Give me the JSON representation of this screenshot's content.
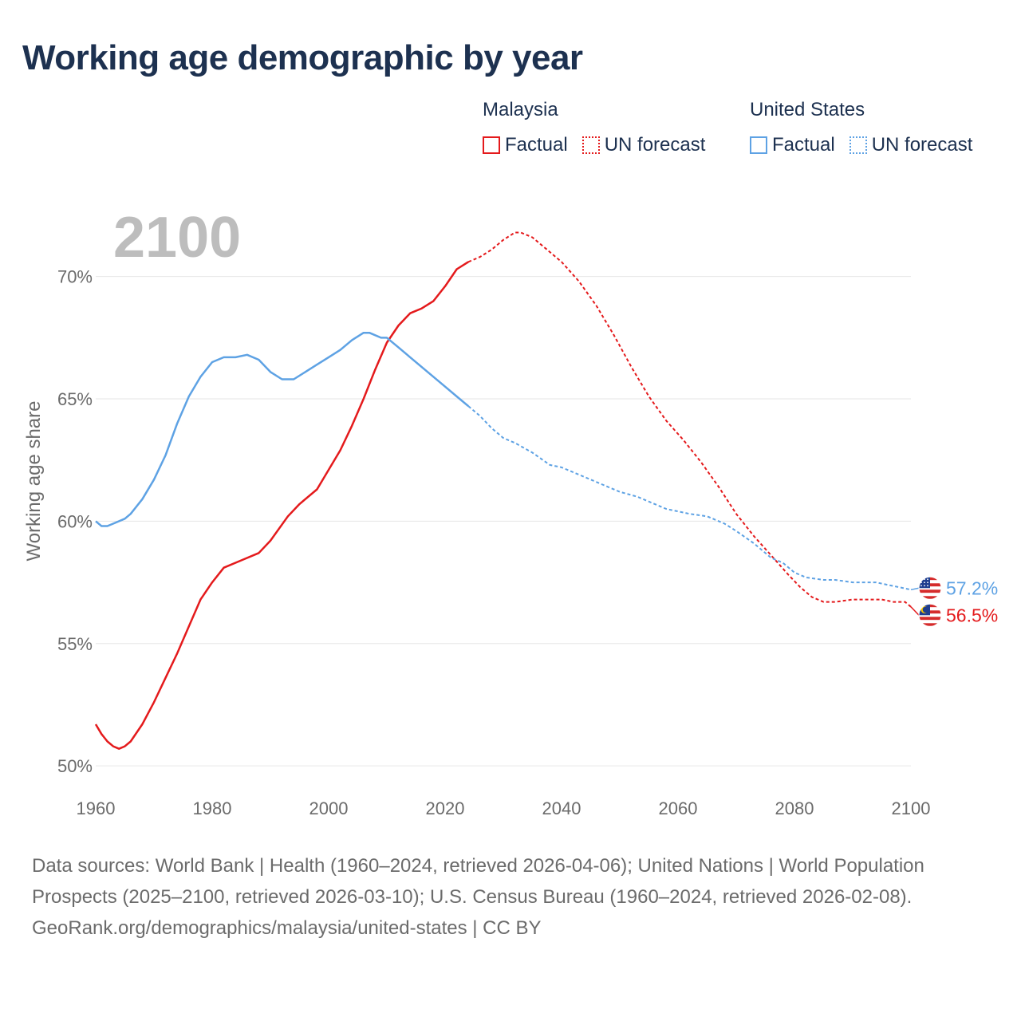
{
  "title": "Working age demographic by year",
  "legend": {
    "malaysia": {
      "title": "Malaysia",
      "factual": "Factual",
      "forecast": "UN forecast"
    },
    "us": {
      "title": "United States",
      "factual": "Factual",
      "forecast": "UN forecast"
    }
  },
  "colors": {
    "malaysia": "#e41a1c",
    "us": "#5ea2e4",
    "grid": "#e6e6e6",
    "axis_text": "#6b6b6b",
    "year_label": "#bdbdbd"
  },
  "chart_data": {
    "type": "line",
    "year_label": "2100",
    "ylabel": "Working age share",
    "xlim": [
      1960,
      2100
    ],
    "ylim": [
      48.7,
      72.5
    ],
    "xticks": [
      1960,
      1980,
      2000,
      2020,
      2040,
      2060,
      2080,
      2100
    ],
    "xtick_labels": [
      "1960",
      "1980",
      "2000",
      "2020",
      "2040",
      "2060",
      "2080",
      "2100"
    ],
    "yticks": [
      50,
      55,
      60,
      65,
      70
    ],
    "ytick_labels": [
      "50%",
      "55%",
      "60%",
      "65%",
      "70%"
    ],
    "series": [
      {
        "name": "Malaysia",
        "end_label": "56.5%",
        "factual": [
          [
            1960,
            51.7
          ],
          [
            1961,
            51.3
          ],
          [
            1962,
            51.0
          ],
          [
            1963,
            50.8
          ],
          [
            1964,
            50.7
          ],
          [
            1965,
            50.8
          ],
          [
            1966,
            51.0
          ],
          [
            1968,
            51.7
          ],
          [
            1970,
            52.6
          ],
          [
            1972,
            53.6
          ],
          [
            1974,
            54.6
          ],
          [
            1976,
            55.7
          ],
          [
            1978,
            56.8
          ],
          [
            1980,
            57.5
          ],
          [
            1982,
            58.1
          ],
          [
            1985,
            58.4
          ],
          [
            1988,
            58.7
          ],
          [
            1990,
            59.2
          ],
          [
            1993,
            60.2
          ],
          [
            1995,
            60.7
          ],
          [
            1998,
            61.3
          ],
          [
            2000,
            62.1
          ],
          [
            2002,
            62.9
          ],
          [
            2004,
            63.9
          ],
          [
            2006,
            65.0
          ],
          [
            2008,
            66.2
          ],
          [
            2010,
            67.3
          ],
          [
            2012,
            68.0
          ],
          [
            2014,
            68.5
          ],
          [
            2016,
            68.7
          ],
          [
            2018,
            69.0
          ],
          [
            2020,
            69.6
          ],
          [
            2022,
            70.3
          ],
          [
            2024,
            70.6
          ]
        ],
        "forecast": [
          [
            2024,
            70.6
          ],
          [
            2026,
            70.8
          ],
          [
            2028,
            71.1
          ],
          [
            2030,
            71.5
          ],
          [
            2032,
            71.8
          ],
          [
            2033,
            71.8
          ],
          [
            2035,
            71.6
          ],
          [
            2038,
            71.0
          ],
          [
            2040,
            70.6
          ],
          [
            2043,
            69.8
          ],
          [
            2046,
            68.8
          ],
          [
            2049,
            67.6
          ],
          [
            2052,
            66.3
          ],
          [
            2055,
            65.1
          ],
          [
            2058,
            64.1
          ],
          [
            2061,
            63.3
          ],
          [
            2064,
            62.4
          ],
          [
            2067,
            61.4
          ],
          [
            2070,
            60.3
          ],
          [
            2073,
            59.4
          ],
          [
            2076,
            58.6
          ],
          [
            2079,
            57.8
          ],
          [
            2081,
            57.3
          ],
          [
            2083,
            56.9
          ],
          [
            2085,
            56.7
          ],
          [
            2087,
            56.7
          ],
          [
            2090,
            56.8
          ],
          [
            2093,
            56.8
          ],
          [
            2095,
            56.8
          ],
          [
            2097,
            56.7
          ],
          [
            2099,
            56.7
          ],
          [
            2100,
            56.5
          ]
        ]
      },
      {
        "name": "United States",
        "end_label": "57.2%",
        "factual": [
          [
            1960,
            60.0
          ],
          [
            1961,
            59.8
          ],
          [
            1962,
            59.8
          ],
          [
            1963,
            59.9
          ],
          [
            1965,
            60.1
          ],
          [
            1966,
            60.3
          ],
          [
            1968,
            60.9
          ],
          [
            1970,
            61.7
          ],
          [
            1972,
            62.7
          ],
          [
            1974,
            64.0
          ],
          [
            1976,
            65.1
          ],
          [
            1978,
            65.9
          ],
          [
            1980,
            66.5
          ],
          [
            1982,
            66.7
          ],
          [
            1984,
            66.7
          ],
          [
            1986,
            66.8
          ],
          [
            1988,
            66.6
          ],
          [
            1990,
            66.1
          ],
          [
            1992,
            65.8
          ],
          [
            1994,
            65.8
          ],
          [
            1996,
            66.1
          ],
          [
            1998,
            66.4
          ],
          [
            2000,
            66.7
          ],
          [
            2002,
            67.0
          ],
          [
            2004,
            67.4
          ],
          [
            2006,
            67.7
          ],
          [
            2007,
            67.7
          ],
          [
            2009,
            67.5
          ],
          [
            2010,
            67.5
          ],
          [
            2012,
            67.1
          ],
          [
            2014,
            66.7
          ],
          [
            2016,
            66.3
          ],
          [
            2018,
            65.9
          ],
          [
            2020,
            65.5
          ],
          [
            2022,
            65.1
          ],
          [
            2024,
            64.7
          ]
        ],
        "forecast": [
          [
            2024,
            64.7
          ],
          [
            2026,
            64.3
          ],
          [
            2028,
            63.8
          ],
          [
            2030,
            63.4
          ],
          [
            2032,
            63.2
          ],
          [
            2035,
            62.8
          ],
          [
            2038,
            62.3
          ],
          [
            2040,
            62.2
          ],
          [
            2043,
            61.9
          ],
          [
            2046,
            61.6
          ],
          [
            2048,
            61.4
          ],
          [
            2050,
            61.2
          ],
          [
            2053,
            61.0
          ],
          [
            2056,
            60.7
          ],
          [
            2058,
            60.5
          ],
          [
            2060,
            60.4
          ],
          [
            2062,
            60.3
          ],
          [
            2065,
            60.2
          ],
          [
            2068,
            59.9
          ],
          [
            2070,
            59.6
          ],
          [
            2073,
            59.1
          ],
          [
            2076,
            58.5
          ],
          [
            2078,
            58.3
          ],
          [
            2080,
            57.9
          ],
          [
            2082,
            57.7
          ],
          [
            2085,
            57.6
          ],
          [
            2087,
            57.6
          ],
          [
            2090,
            57.5
          ],
          [
            2094,
            57.5
          ],
          [
            2096,
            57.4
          ],
          [
            2098,
            57.3
          ],
          [
            2100,
            57.2
          ]
        ]
      }
    ]
  },
  "footer": {
    "sources": "Data sources: World Bank | Health (1960–2024, retrieved 2026-04-06); United Nations | World Population Prospects (2025–2100, retrieved 2026-03-10); U.S. Census Bureau (1960–2024, retrieved 2026-02-08).",
    "attribution": "GeoRank.org/demographics/malaysia/united-states | CC BY"
  }
}
